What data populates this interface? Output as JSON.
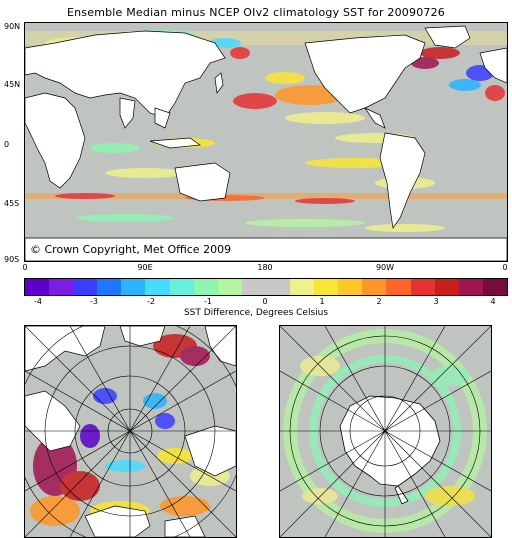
{
  "title": "Ensemble Median minus NCEP OIv2 climatology SST for 20090726",
  "copyright": "© Crown Copyright, Met Office 2009",
  "lat_labels": [
    "90N",
    "45N",
    "0",
    "45S",
    "90S"
  ],
  "lon_labels": [
    "0",
    "90E",
    "180",
    "90W",
    "0"
  ],
  "colorbar": {
    "title": "SST Difference, Degrees Celsius",
    "ticks": [
      "-4",
      "-3",
      "-2",
      "-1",
      "0",
      "1",
      "2",
      "3",
      "4"
    ],
    "colors": [
      "#5a00c8",
      "#7a1ee6",
      "#3c3cff",
      "#1e78ff",
      "#28b4ff",
      "#46dcff",
      "#64f0dc",
      "#8cf5b4",
      "#b4f5a0",
      "#c8c8c8",
      "#c8c8c8",
      "#f0f08c",
      "#fae632",
      "#ffc828",
      "#ff9628",
      "#ff6428",
      "#e63232",
      "#c81e1e",
      "#a01450",
      "#780a3c"
    ]
  },
  "colors": {
    "ocean_neutral": "#c0c4c0",
    "land": "#ffffff",
    "warm": "#e8283c",
    "cool": "#28b4ff"
  },
  "panels": {
    "main": "global-anomaly-map",
    "north": "arctic-polar-map",
    "south": "antarctic-polar-map"
  }
}
